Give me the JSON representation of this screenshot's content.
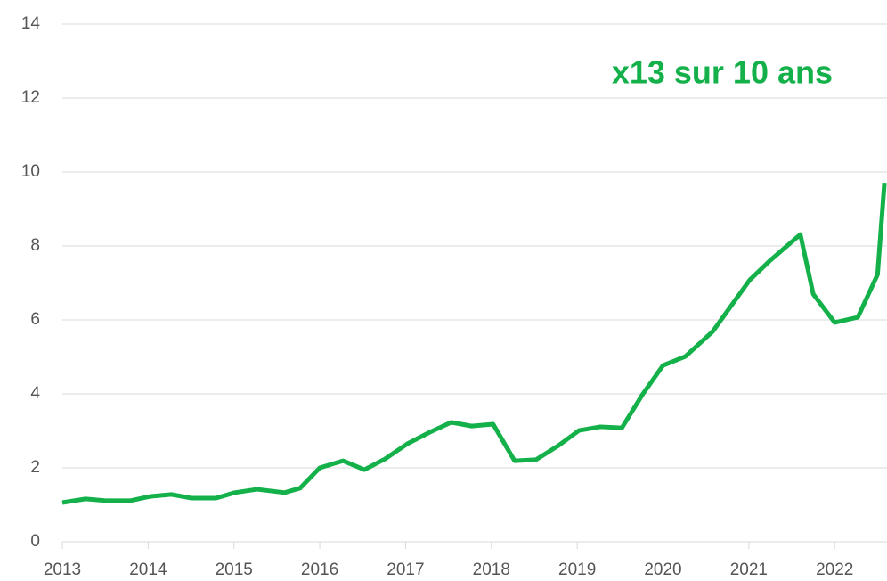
{
  "chart_data": {
    "type": "line",
    "annotation": "x13 sur 10 ans",
    "x": [
      2013.0,
      2013.27,
      2013.52,
      2013.79,
      2014.03,
      2014.27,
      2014.51,
      2014.79,
      2015.01,
      2015.27,
      2015.59,
      2015.77,
      2016.0,
      2016.27,
      2016.52,
      2016.76,
      2017.02,
      2017.28,
      2017.53,
      2017.77,
      2018.02,
      2018.27,
      2018.52,
      2018.78,
      2019.02,
      2019.27,
      2019.52,
      2019.76,
      2020.0,
      2020.26,
      2020.58,
      2021.01,
      2021.24,
      2021.6,
      2021.75,
      2022.0,
      2022.27,
      2022.5,
      2022.58
    ],
    "series": [
      {
        "color": "#14b14b",
        "values": [
          1.06,
          1.16,
          1.11,
          1.11,
          1.23,
          1.28,
          1.18,
          1.18,
          1.33,
          1.42,
          1.33,
          1.45,
          2.0,
          2.19,
          1.95,
          2.24,
          2.65,
          2.96,
          3.23,
          3.13,
          3.18,
          2.19,
          2.22,
          2.6,
          3.01,
          3.11,
          3.08,
          3.98,
          4.77,
          5.01,
          5.69,
          7.08,
          7.59,
          8.31,
          6.7,
          5.93,
          6.07,
          7.23,
          9.71
        ]
      }
    ],
    "xlim": [
      2013,
      2022.61
    ],
    "xticks": [
      2013,
      2014,
      2015,
      2016,
      2017,
      2018,
      2019,
      2020,
      2021,
      2022
    ],
    "ylim": [
      0,
      14
    ],
    "yticks": [
      0,
      2,
      4,
      6,
      8,
      10,
      12,
      14
    ],
    "grid": true
  }
}
